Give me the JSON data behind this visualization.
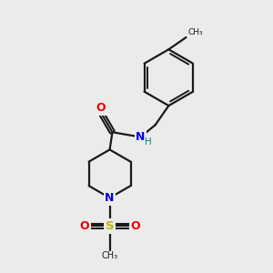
{
  "bg_color": "#ebebeb",
  "bond_color": "#1a1a1a",
  "N_color": "#0000ee",
  "O_color": "#ee0000",
  "S_color": "#bbbb00",
  "H_color": "#008888",
  "line_width": 1.6,
  "figsize": [
    3.0,
    3.0
  ],
  "dpi": 100,
  "xlim": [
    0,
    10
  ],
  "ylim": [
    0,
    10
  ]
}
